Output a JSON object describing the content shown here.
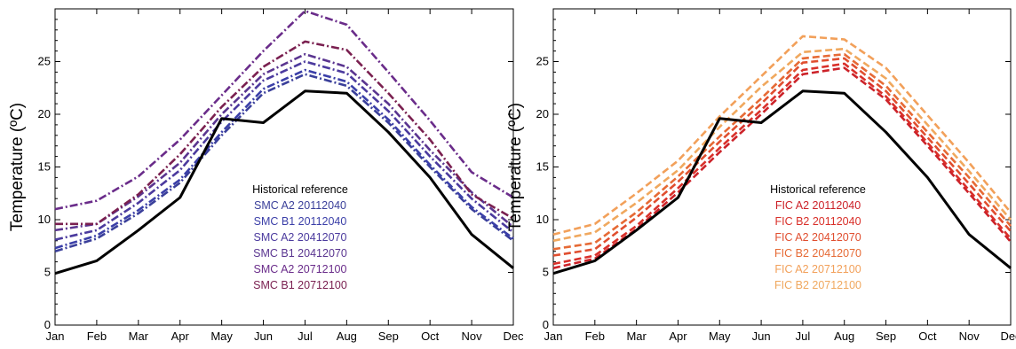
{
  "chart_data": [
    {
      "type": "line",
      "title": "",
      "xlabel": "",
      "ylabel": "Temperature (ºC)",
      "categories": [
        "Jan",
        "Feb",
        "Mar",
        "Apr",
        "May",
        "Jun",
        "Jul",
        "Aug",
        "Sep",
        "Oct",
        "Nov",
        "Dec"
      ],
      "yticks": [
        "0",
        "5",
        "10",
        "15",
        "20",
        "25"
      ],
      "ylim": [
        0,
        30
      ],
      "grid": false,
      "legend_placement": "center-right",
      "series": [
        {
          "name": "Historical reference",
          "color": "#000000",
          "style": "solid",
          "values": [
            4.9,
            6.1,
            9.0,
            12.1,
            19.6,
            19.2,
            22.2,
            22.0,
            18.3,
            14.0,
            8.6,
            5.4
          ]
        },
        {
          "name": "SMC A2 20112040",
          "color": "#3a3f9a",
          "style": "dashdot",
          "values": [
            7.0,
            8.2,
            10.6,
            13.5,
            18.0,
            22.0,
            23.8,
            22.7,
            19.2,
            15.0,
            11.0,
            8.0
          ]
        },
        {
          "name": "SMC B1 20112040",
          "color": "#3b3fa8",
          "style": "dashdot",
          "values": [
            7.3,
            8.5,
            10.9,
            13.8,
            18.3,
            22.4,
            24.2,
            23.1,
            19.5,
            15.2,
            11.2,
            8.2
          ]
        },
        {
          "name": "SMC A2 20412070",
          "color": "#4b3a9e",
          "style": "dashdot",
          "values": [
            8.1,
            9.0,
            11.6,
            14.7,
            19.3,
            23.2,
            25.0,
            23.9,
            20.3,
            16.0,
            12.0,
            8.8
          ]
        },
        {
          "name": "SMC B1 20412070",
          "color": "#5a3590",
          "style": "dashdot",
          "values": [
            9.0,
            9.6,
            12.2,
            15.4,
            20.0,
            23.8,
            25.7,
            24.5,
            21.0,
            16.6,
            12.6,
            9.3
          ]
        },
        {
          "name": "SMC A2 20712100",
          "color": "#6a2c8a",
          "style": "dashdot",
          "values": [
            11.0,
            11.8,
            14.1,
            17.6,
            21.8,
            26.0,
            29.8,
            28.5,
            24.0,
            19.4,
            14.5,
            12.1
          ]
        },
        {
          "name": "SMC B1 20712100",
          "color": "#7a2050",
          "style": "dashdot",
          "values": [
            9.6,
            9.6,
            12.4,
            16.2,
            20.7,
            24.5,
            26.9,
            26.1,
            22.0,
            17.6,
            12.4,
            10.1
          ]
        }
      ]
    },
    {
      "type": "line",
      "title": "",
      "xlabel": "",
      "ylabel": "Temperature (ºC)",
      "categories": [
        "Jan",
        "Feb",
        "Mar",
        "Apr",
        "May",
        "Jun",
        "Jul",
        "Aug",
        "Sep",
        "Oct",
        "Nov",
        "Dec"
      ],
      "yticks": [
        "0",
        "5",
        "10",
        "15",
        "20",
        "25"
      ],
      "ylim": [
        0,
        30
      ],
      "grid": false,
      "legend_placement": "center-right",
      "series": [
        {
          "name": "Historical reference",
          "color": "#000000",
          "style": "solid",
          "values": [
            4.9,
            6.1,
            9.0,
            12.1,
            19.6,
            19.2,
            22.2,
            22.0,
            18.3,
            14.0,
            8.6,
            5.4
          ]
        },
        {
          "name": "FIC A2 20112040",
          "color": "#cc2229",
          "style": "dashed",
          "values": [
            5.4,
            6.3,
            9.1,
            12.6,
            16.4,
            20.0,
            23.8,
            24.4,
            21.4,
            17.0,
            12.5,
            7.9
          ]
        },
        {
          "name": "FIC B2 20112040",
          "color": "#d9302a",
          "style": "dashed",
          "values": [
            5.8,
            6.6,
            9.4,
            13.0,
            16.8,
            20.4,
            24.2,
            24.8,
            21.7,
            17.3,
            12.8,
            8.2
          ]
        },
        {
          "name": "FIC A2 20412070",
          "color": "#e04e2f",
          "style": "dashed",
          "values": [
            6.6,
            7.2,
            10.2,
            13.6,
            17.4,
            21.0,
            24.9,
            25.3,
            22.2,
            17.8,
            13.4,
            8.9
          ]
        },
        {
          "name": "FIC B2 20412070",
          "color": "#e66a35",
          "style": "dashed",
          "values": [
            7.2,
            7.8,
            10.7,
            14.1,
            17.9,
            21.5,
            25.3,
            25.7,
            22.7,
            18.3,
            14.0,
            9.4
          ]
        },
        {
          "name": "FIC A2 20712100",
          "color": "#f2a05a",
          "style": "dashed",
          "values": [
            8.6,
            9.6,
            12.5,
            15.6,
            19.8,
            23.6,
            27.4,
            27.1,
            24.4,
            19.9,
            15.4,
            10.7
          ]
        },
        {
          "name": "FIC B2 20712100",
          "color": "#f0a85e",
          "style": "dashed",
          "values": [
            8.0,
            8.8,
            11.6,
            14.7,
            18.8,
            22.6,
            25.9,
            26.2,
            23.4,
            19.0,
            14.6,
            10.0
          ]
        }
      ]
    }
  ]
}
